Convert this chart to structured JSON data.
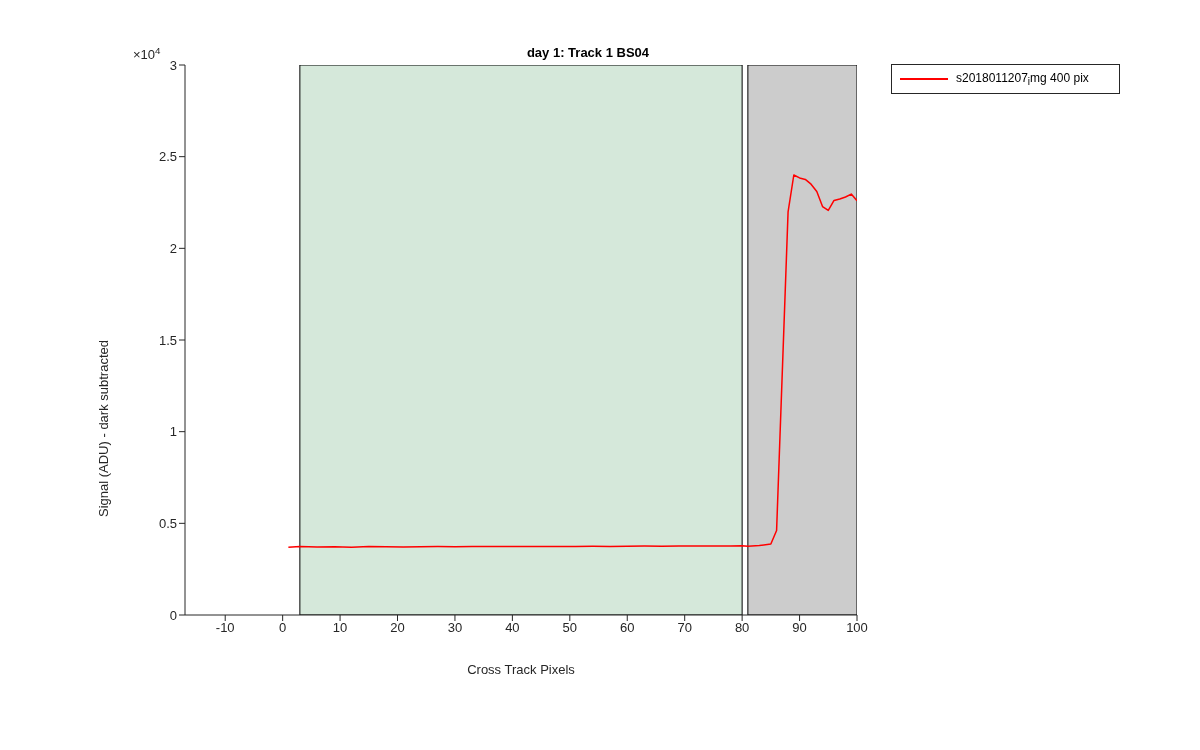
{
  "chart_data": {
    "type": "line",
    "title": "day 1: Track 1  BS04",
    "xlabel": "Cross Track Pixels",
    "ylabel": "Signal (ADU) - dark subtracted",
    "annotations": [
      "×10$^{4}$"
    ],
    "x": [
      1,
      3,
      6,
      9,
      12,
      15,
      18,
      21,
      24,
      27,
      30,
      33,
      36,
      39,
      42,
      45,
      48,
      51,
      54,
      57,
      60,
      63,
      66,
      69,
      72,
      75,
      78,
      80,
      81,
      83,
      85,
      86,
      88,
      89,
      90,
      91,
      92,
      93,
      94,
      95,
      96,
      97,
      98,
      99,
      100
    ],
    "series": [
      {
        "name": "s2018011207$_{i}$mg 400 pix",
        "color": "#ff0000",
        "values": [
          0.369,
          0.374,
          0.371,
          0.372,
          0.37,
          0.373,
          0.372,
          0.371,
          0.372,
          0.373,
          0.372,
          0.373,
          0.373,
          0.374,
          0.373,
          0.374,
          0.374,
          0.374,
          0.375,
          0.374,
          0.375,
          0.376,
          0.375,
          0.376,
          0.376,
          0.376,
          0.377,
          0.378,
          0.375,
          0.379,
          0.387,
          0.461,
          2.199,
          2.4,
          2.384,
          2.376,
          2.35,
          2.31,
          2.228,
          2.207,
          2.261,
          2.269,
          2.28,
          2.296,
          2.26
        ]
      }
    ],
    "xlim": [
      -17,
      100
    ],
    "xticks": [
      -10,
      0,
      10,
      20,
      30,
      40,
      50,
      60,
      70,
      80,
      90,
      100
    ],
    "ylim": [
      0,
      3
    ],
    "yticks": [
      0,
      0.5,
      1,
      1.5,
      2,
      2.5,
      3
    ],
    "bands": [
      {
        "axis": "x",
        "from": 3,
        "to": 80,
        "color": "#d5e8da"
      },
      {
        "axis": "x",
        "from": 81,
        "to": 100,
        "color": "#cccccc"
      }
    ],
    "legend": "top right",
    "marker": "none",
    "line_style": "solid"
  }
}
